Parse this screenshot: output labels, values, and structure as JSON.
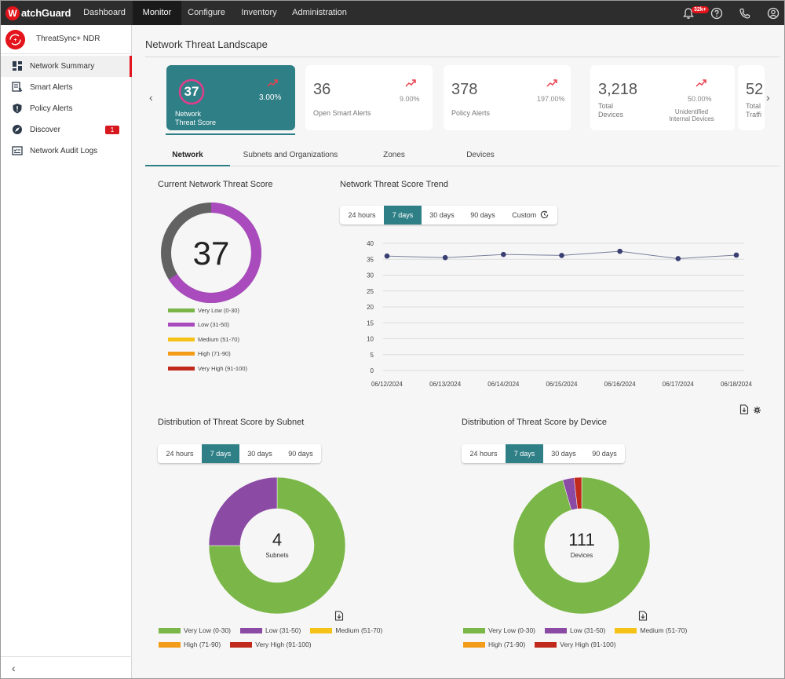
{
  "brand": {
    "logo_letter": "W",
    "logo_text": "atchGuard"
  },
  "topnav": {
    "items": [
      {
        "label": "Dashboard"
      },
      {
        "label": "Monitor"
      },
      {
        "label": "Configure"
      },
      {
        "label": "Inventory"
      },
      {
        "label": "Administration"
      }
    ],
    "notification_count": "32k+"
  },
  "sidebar": {
    "title": "ThreatSync+ NDR",
    "items": [
      {
        "label": "Network Summary",
        "icon": "dashboard-icon",
        "active": true
      },
      {
        "label": "Smart Alerts",
        "icon": "smart-alert-icon"
      },
      {
        "label": "Policy Alerts",
        "icon": "shield-icon"
      },
      {
        "label": "Discover",
        "icon": "compass-icon",
        "count": "1"
      },
      {
        "label": "Network Audit Logs",
        "icon": "audit-log-icon"
      }
    ]
  },
  "page": {
    "title": "Network Threat Landscape"
  },
  "cards": [
    {
      "value": "37",
      "label": "Network\nThreat Score",
      "pct": "3.00%",
      "active": true
    },
    {
      "value": "36",
      "label": "Open Smart Alerts",
      "pct": "9.00%"
    },
    {
      "value": "378",
      "label": "Policy Alerts",
      "pct": "197.00%"
    },
    {
      "value": "3,218",
      "label": "Total\nDevices",
      "pct": "50.00%",
      "sub": "Unidentified\nInternal Devices"
    },
    {
      "value": "52",
      "label": "Total\nTraffi"
    }
  ],
  "tabs": [
    {
      "label": "Network"
    },
    {
      "label": "Subnets and Organizations"
    },
    {
      "label": "Zones"
    },
    {
      "label": "Devices"
    }
  ],
  "current_score": {
    "title": "Current Network Threat Score",
    "value": "37",
    "score": 37
  },
  "legend_levels": [
    {
      "label": "Very Low (0-30)",
      "color": "#7ab648"
    },
    {
      "label": "Low (31-50)",
      "color": "#a94bbd"
    },
    {
      "label": "Medium (51-70)",
      "color": "#f5c318"
    },
    {
      "label": "High (71-90)",
      "color": "#f39c19"
    },
    {
      "label": "Very High (91-100)",
      "color": "#c0291b"
    }
  ],
  "trend": {
    "title": "Network Threat Score Trend",
    "ranges": [
      "24 hours",
      "7 days",
      "30 days",
      "90 days",
      "Custom"
    ],
    "selected": "7 days"
  },
  "subnet_dist": {
    "title": "Distribution of Threat Score by Subnet",
    "ranges": [
      "24 hours",
      "7 days",
      "30 days",
      "90 days"
    ],
    "selected": "7 days",
    "center_value": "4",
    "center_label": "Subnets"
  },
  "device_dist": {
    "title": "Distribution of Threat Score by Device",
    "ranges": [
      "24 hours",
      "7 days",
      "30 days",
      "90 days"
    ],
    "selected": "7 days",
    "center_value": "111",
    "center_label": "Devices"
  },
  "chart_data": [
    {
      "type": "line",
      "title": "Network Threat Score Trend",
      "x": [
        "06/12/2024",
        "06/13/2024",
        "06/14/2024",
        "06/15/2024",
        "06/16/2024",
        "06/17/2024",
        "06/18/2024"
      ],
      "series": [
        {
          "values": [
            36,
            35.5,
            36.5,
            36.2,
            37.5,
            35.2,
            36.3
          ]
        }
      ],
      "ylim": [
        0,
        40
      ],
      "yticks": [
        0,
        5,
        10,
        15,
        20,
        25,
        30,
        35,
        40
      ],
      "grid": true,
      "color": "#3a3f73"
    },
    {
      "type": "pie",
      "title": "Distribution of Threat Score by Subnet",
      "categories": [
        "Very Low (0-30)",
        "Low (31-50)",
        "Medium (51-70)",
        "High (71-90)",
        "Very High (91-100)"
      ],
      "values": [
        3,
        1,
        0,
        0,
        0
      ],
      "colors": [
        "#7ab648",
        "#8b4aa3",
        "#f5c318",
        "#f39c19",
        "#c0291b"
      ]
    },
    {
      "type": "pie",
      "title": "Distribution of Threat Score by Device",
      "categories": [
        "Very Low (0-30)",
        "Low (31-50)",
        "Medium (51-70)",
        "High (71-90)",
        "Very High (91-100)"
      ],
      "values": [
        106,
        3,
        0,
        0,
        2
      ],
      "colors": [
        "#7ab648",
        "#8b4aa3",
        "#f5c318",
        "#f39c19",
        "#c0291b"
      ]
    }
  ]
}
